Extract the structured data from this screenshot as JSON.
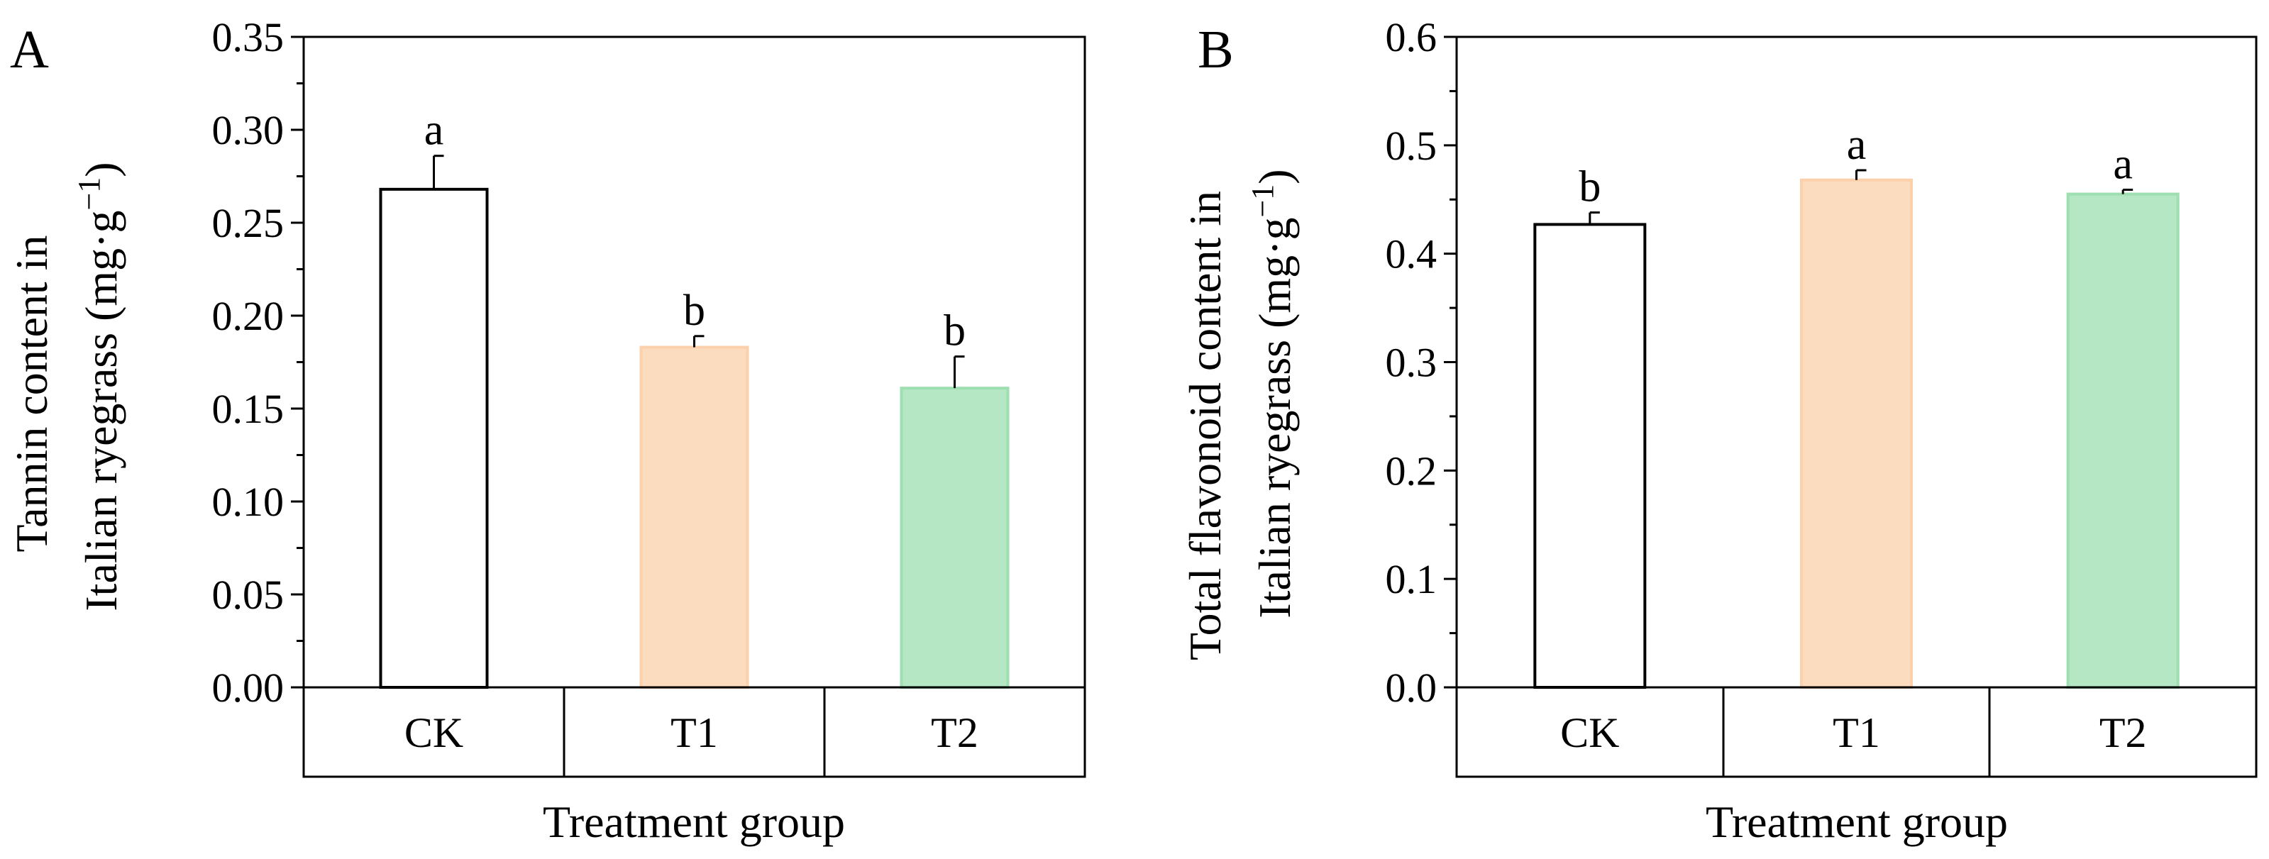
{
  "chart_data": [
    {
      "panel": "A",
      "type": "bar",
      "categories": [
        "CK",
        "T1",
        "T2"
      ],
      "values": [
        0.268,
        0.183,
        0.161
      ],
      "errors": [
        0.018,
        0.006,
        0.017
      ],
      "significance": [
        "a",
        "b",
        "b"
      ],
      "colors": [
        "#ffffff",
        "#fcdcbf",
        "#b5e7c4"
      ],
      "edge_colors": [
        "#000000",
        "#fbd0ab",
        "#9ddfb1"
      ],
      "ylim": [
        0,
        0.35
      ],
      "yticks": [
        0,
        0.05,
        0.1,
        0.15,
        0.2,
        0.25,
        0.3,
        0.35
      ],
      "ytick_labels": [
        "0.00",
        "0.05",
        "0.10",
        "0.15",
        "0.20",
        "0.25",
        "0.30",
        "0.35"
      ],
      "ylabel_line1": "Tannin content in",
      "ylabel_line2_prefix": "Italian ryegrass (mg·g",
      "ylabel_sup": "−1",
      "ylabel_line2_suffix": ")",
      "xlabel": "Treatment group",
      "grid": false
    },
    {
      "panel": "B",
      "type": "bar",
      "categories": [
        "CK",
        "T1",
        "T2"
      ],
      "values": [
        0.427,
        0.468,
        0.455
      ],
      "errors": [
        0.011,
        0.009,
        0.004
      ],
      "significance": [
        "b",
        "a",
        "a"
      ],
      "colors": [
        "#ffffff",
        "#fcdcbf",
        "#b5e7c4"
      ],
      "edge_colors": [
        "#000000",
        "#fbd0ab",
        "#9ddfb1"
      ],
      "ylim": [
        0,
        0.6
      ],
      "yticks": [
        0,
        0.1,
        0.2,
        0.3,
        0.4,
        0.5,
        0.6
      ],
      "ytick_labels": [
        "0.0",
        "0.1",
        "0.2",
        "0.3",
        "0.4",
        "0.5",
        "0.6"
      ],
      "ylabel_line1": "Total flavonoid content in",
      "ylabel_line2_prefix": "Italian ryegrass (mg·g",
      "ylabel_sup": "−1",
      "ylabel_line2_suffix": ")",
      "xlabel": "Treatment group",
      "grid": false
    }
  ]
}
